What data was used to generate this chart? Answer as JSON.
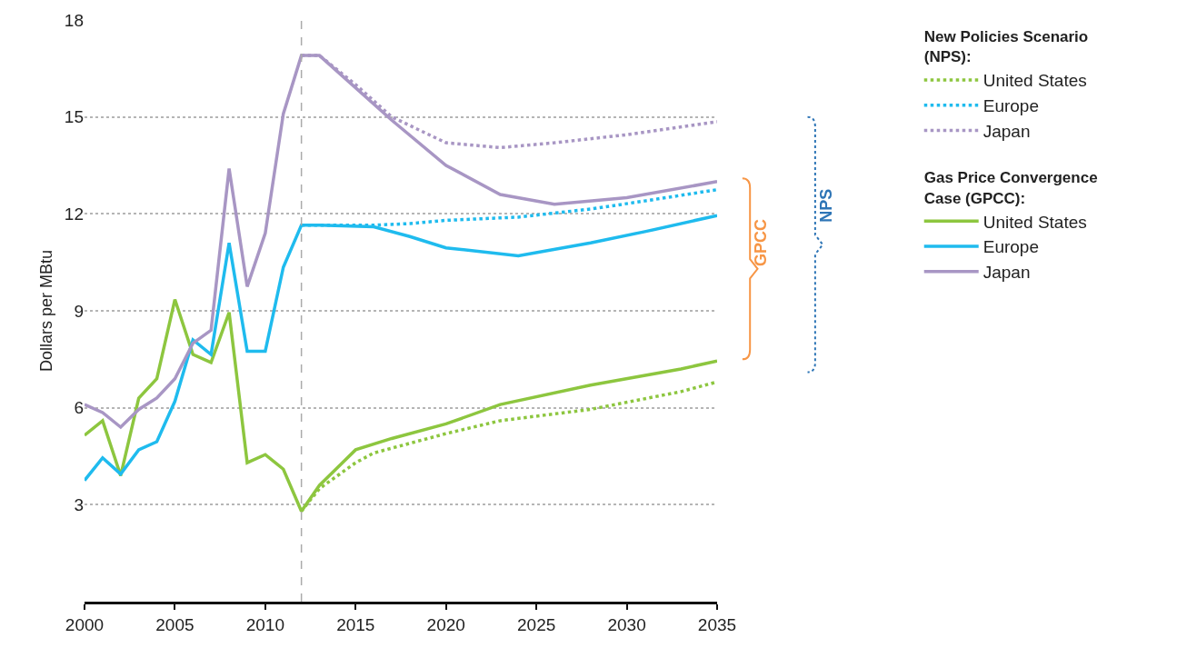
{
  "chart_data": {
    "type": "line",
    "ylabel": "Dollars per MBtu",
    "xlim": [
      2000,
      2035
    ],
    "xticks": [
      2000,
      2005,
      2010,
      2015,
      2020,
      2025,
      2030,
      2035
    ],
    "ylim": [
      0,
      18
    ],
    "yticks": [
      3,
      6,
      9,
      12,
      15,
      18
    ],
    "grid": "y",
    "legend": "right",
    "legend_title": [
      "New Policies Scenario\n(NPS):",
      "Gas Price Convergence\nCase (GPCC):"
    ],
    "ref_lines": [
      {
        "axis": "x",
        "value": 2012,
        "color": "#aaaaaa",
        "line_style": "dashed"
      }
    ],
    "annotations": [
      "GPCC",
      "NPS"
    ],
    "series": [
      {
        "name": "United States",
        "color": "#8dc63f",
        "line_style": "dotted",
        "x": [
          2012,
          2013,
          2015,
          2016,
          2020,
          2023,
          2028,
          2033,
          2035
        ],
        "values": [
          2.8,
          3.5,
          4.3,
          4.6,
          5.2,
          5.6,
          5.95,
          6.5,
          6.8
        ]
      },
      {
        "name": "Europe",
        "color": "#1fbbee",
        "line_style": "dotted",
        "x": [
          2012,
          2016,
          2018,
          2020,
          2024,
          2028,
          2031,
          2035
        ],
        "values": [
          11.65,
          11.65,
          11.7,
          11.8,
          11.9,
          12.15,
          12.4,
          12.75
        ]
      },
      {
        "name": "Japan",
        "color": "#a896c4",
        "line_style": "dotted",
        "x": [
          2012,
          2013,
          2015,
          2017,
          2020,
          2023,
          2026,
          2030,
          2035
        ],
        "values": [
          16.9,
          16.9,
          16.0,
          15.0,
          14.2,
          14.05,
          14.2,
          14.45,
          14.85
        ]
      },
      {
        "name": "United States",
        "color": "#8dc63f",
        "line_style": "solid",
        "x": [
          2000,
          2001,
          2002,
          2003,
          2004,
          2005,
          2006,
          2007,
          2008,
          2009,
          2010,
          2011,
          2012,
          2013,
          2015,
          2017,
          2020,
          2023,
          2028,
          2033,
          2035
        ],
        "values": [
          5.15,
          5.6,
          3.9,
          6.3,
          6.9,
          9.35,
          7.65,
          7.4,
          8.95,
          4.3,
          4.55,
          4.1,
          2.8,
          3.6,
          4.7,
          5.05,
          5.5,
          6.1,
          6.7,
          7.2,
          7.45
        ]
      },
      {
        "name": "Europe",
        "color": "#1fbbee",
        "line_style": "solid",
        "x": [
          2000,
          2001,
          2002,
          2003,
          2004,
          2005,
          2006,
          2007,
          2008,
          2009,
          2010,
          2011,
          2012,
          2013,
          2016,
          2018,
          2020,
          2024,
          2028,
          2031,
          2035
        ],
        "values": [
          3.75,
          4.45,
          3.95,
          4.7,
          4.95,
          6.2,
          8.1,
          7.65,
          11.1,
          7.75,
          7.75,
          10.35,
          11.65,
          11.65,
          11.6,
          11.3,
          10.95,
          10.7,
          11.1,
          11.45,
          11.95
        ]
      },
      {
        "name": "Japan",
        "color": "#a896c4",
        "line_style": "solid",
        "x": [
          2000,
          2001,
          2002,
          2003,
          2004,
          2005,
          2006,
          2007,
          2008,
          2009,
          2010,
          2011,
          2012,
          2013,
          2015,
          2017,
          2020,
          2023,
          2026,
          2030,
          2035
        ],
        "values": [
          6.1,
          5.85,
          5.4,
          5.95,
          6.3,
          6.9,
          8.0,
          8.4,
          13.4,
          9.75,
          11.4,
          15.1,
          16.9,
          16.9,
          15.9,
          14.9,
          13.5,
          12.6,
          12.3,
          12.5,
          13.0
        ]
      }
    ]
  }
}
